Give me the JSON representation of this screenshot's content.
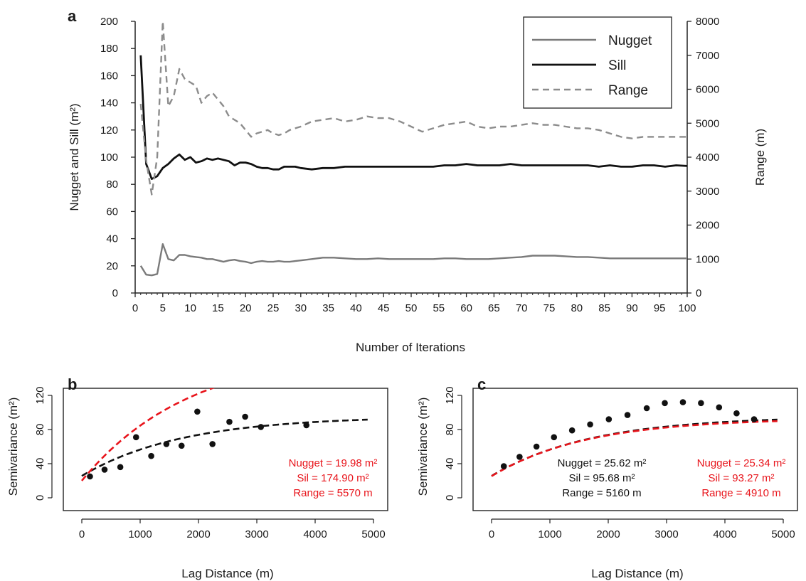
{
  "chart_data": [
    {
      "panel": "a",
      "type": "line",
      "xlabel": "Number of Iterations",
      "ylabel": "Nugget and Sill (m²)",
      "y2label": "Range (m)",
      "xlim": [
        0,
        100
      ],
      "ylim": [
        0,
        200
      ],
      "y2lim": [
        0,
        8000
      ],
      "xticks": [
        0,
        5,
        10,
        15,
        20,
        25,
        30,
        35,
        40,
        45,
        50,
        55,
        60,
        65,
        70,
        75,
        80,
        85,
        90,
        95,
        100
      ],
      "yticks": [
        0,
        20,
        40,
        60,
        80,
        100,
        120,
        140,
        160,
        180,
        200
      ],
      "y2ticks": [
        0,
        1000,
        2000,
        3000,
        4000,
        5000,
        6000,
        7000,
        8000
      ],
      "legend_position": "top-right",
      "legend": [
        "Nugget",
        "Sill",
        "Range"
      ],
      "colors": {
        "nugget": "#7a7a7a",
        "sill": "#111111",
        "range": "#8c8c8c"
      },
      "series": [
        {
          "name": "Nugget",
          "axis": "left",
          "style": "solid",
          "x": [
            1,
            2,
            3,
            4,
            5,
            6,
            7,
            8,
            9,
            10,
            11,
            12,
            13,
            14,
            15,
            16,
            17,
            18,
            19,
            20,
            21,
            22,
            23,
            24,
            25,
            26,
            27,
            28,
            29,
            30,
            32,
            34,
            36,
            38,
            40,
            42,
            44,
            46,
            48,
            50,
            52,
            54,
            56,
            58,
            60,
            62,
            64,
            66,
            68,
            70,
            72,
            74,
            76,
            78,
            80,
            82,
            84,
            86,
            88,
            90,
            92,
            94,
            96,
            98,
            100
          ],
          "values": [
            20,
            13.5,
            13,
            14,
            36,
            25,
            24,
            28,
            28,
            27,
            26.5,
            26,
            25,
            25,
            24,
            23,
            24,
            24.5,
            23.5,
            23,
            22,
            23,
            23.5,
            23,
            23,
            23.5,
            23,
            23,
            23.5,
            24,
            25,
            26,
            26,
            25.5,
            25,
            25,
            25.5,
            25,
            25,
            25,
            25,
            25,
            25.5,
            25.5,
            25,
            25,
            25,
            25.5,
            26,
            26.5,
            27.5,
            27.5,
            27.5,
            27,
            26.5,
            26.5,
            26,
            25.5,
            25.5,
            25.5,
            25.5,
            25.5,
            25.5,
            25.5,
            25.5
          ]
        },
        {
          "name": "Sill",
          "axis": "left",
          "style": "solid",
          "x": [
            1,
            2,
            3,
            4,
            5,
            6,
            7,
            8,
            9,
            10,
            11,
            12,
            13,
            14,
            15,
            16,
            17,
            18,
            19,
            20,
            21,
            22,
            23,
            24,
            25,
            26,
            27,
            28,
            29,
            30,
            32,
            34,
            36,
            38,
            40,
            42,
            44,
            46,
            48,
            50,
            52,
            54,
            56,
            58,
            60,
            62,
            64,
            66,
            68,
            70,
            72,
            74,
            76,
            78,
            80,
            82,
            84,
            86,
            88,
            90,
            92,
            94,
            96,
            98,
            100
          ],
          "values": [
            175,
            95,
            84,
            86,
            92,
            95,
            99,
            102,
            98,
            100,
            96,
            97,
            99,
            98,
            99,
            98,
            97,
            94,
            96,
            96,
            95,
            93,
            92,
            92,
            91,
            91,
            93,
            93,
            93,
            92,
            91,
            92,
            92,
            93,
            93,
            93,
            93,
            93,
            93,
            93,
            93,
            93,
            94,
            94,
            95,
            94,
            94,
            94,
            95,
            94,
            94,
            94,
            94,
            94,
            94,
            94,
            93,
            94,
            93,
            93,
            94,
            94,
            93,
            94,
            93.5
          ]
        },
        {
          "name": "Range",
          "axis": "right",
          "style": "dashed",
          "x": [
            1,
            2,
            3,
            4,
            5,
            6,
            7,
            8,
            9,
            10,
            11,
            12,
            13,
            14,
            15,
            16,
            17,
            18,
            19,
            20,
            21,
            22,
            23,
            24,
            25,
            26,
            27,
            28,
            29,
            30,
            32,
            34,
            36,
            38,
            40,
            42,
            44,
            46,
            48,
            50,
            52,
            54,
            56,
            58,
            60,
            62,
            64,
            66,
            68,
            70,
            72,
            74,
            76,
            78,
            80,
            82,
            84,
            86,
            88,
            90,
            92,
            94,
            96,
            98,
            100
          ],
          "values": [
            5570,
            3900,
            2900,
            4000,
            8000,
            5500,
            5800,
            6600,
            6300,
            6200,
            6100,
            5600,
            5800,
            5900,
            5700,
            5500,
            5200,
            5100,
            5000,
            4800,
            4600,
            4700,
            4750,
            4800,
            4700,
            4650,
            4700,
            4800,
            4850,
            4900,
            5050,
            5100,
            5150,
            5050,
            5100,
            5200,
            5150,
            5150,
            5050,
            4900,
            4750,
            4850,
            4950,
            5000,
            5050,
            4900,
            4850,
            4900,
            4900,
            4950,
            5000,
            4950,
            4950,
            4900,
            4850,
            4850,
            4800,
            4700,
            4600,
            4550,
            4600,
            4600,
            4600,
            4600,
            4600
          ]
        }
      ]
    },
    {
      "panel": "b",
      "type": "scatter",
      "xlabel": "Lag Distance (m)",
      "ylabel": "Semivariance (m²)",
      "xlim": [
        0,
        5000
      ],
      "ylim": [
        0,
        120
      ],
      "xticks": [
        0,
        1000,
        2000,
        3000,
        4000,
        5000
      ],
      "yticks": [
        0,
        40,
        80,
        120
      ],
      "points": {
        "x": [
          140,
          390,
          660,
          930,
          1190,
          1450,
          1710,
          1980,
          2240,
          2530,
          2800,
          3070,
          3850
        ],
        "y": [
          25,
          33,
          36,
          71,
          49,
          63,
          61,
          101,
          63,
          89,
          95,
          83,
          85
        ]
      },
      "fits": [
        {
          "color": "#111111",
          "nugget": 25.62,
          "sill": 95.68,
          "range": 5160
        },
        {
          "color": "#e8141b",
          "nugget": 19.98,
          "sill": 174.9,
          "range": 5570
        }
      ],
      "annotations": [
        {
          "color": "#e8141b",
          "lines": [
            "Nugget = 19.98 m²",
            "Sil = 174.90 m²",
            "Range = 5570 m"
          ]
        }
      ]
    },
    {
      "panel": "c",
      "type": "scatter",
      "xlabel": "Lag Distance (m)",
      "ylabel": "Semivariance (m²)",
      "xlim": [
        0,
        5000
      ],
      "ylim": [
        0,
        120
      ],
      "xticks": [
        0,
        1000,
        2000,
        3000,
        4000,
        5000
      ],
      "yticks": [
        0,
        40,
        80,
        120
      ],
      "points": {
        "x": [
          210,
          480,
          770,
          1070,
          1380,
          1690,
          2010,
          2330,
          2660,
          2970,
          3280,
          3590,
          3900,
          4200,
          4500
        ],
        "y": [
          37,
          48,
          60,
          71,
          79,
          86,
          92,
          97,
          105,
          111,
          112,
          111,
          106,
          99,
          92
        ]
      },
      "fits": [
        {
          "color": "#111111",
          "nugget": 25.62,
          "sill": 95.68,
          "range": 5160
        },
        {
          "color": "#e8141b",
          "nugget": 25.34,
          "sill": 93.27,
          "range": 4910
        }
      ],
      "annotations": [
        {
          "color": "#111111",
          "lines": [
            "Nugget = 25.62 m²",
            "Sil = 95.68 m²",
            "Range = 5160 m"
          ]
        },
        {
          "color": "#e8141b",
          "lines": [
            "Nugget = 25.34 m²",
            "Sil = 93.27 m²",
            "Range = 4910 m"
          ]
        }
      ]
    }
  ]
}
